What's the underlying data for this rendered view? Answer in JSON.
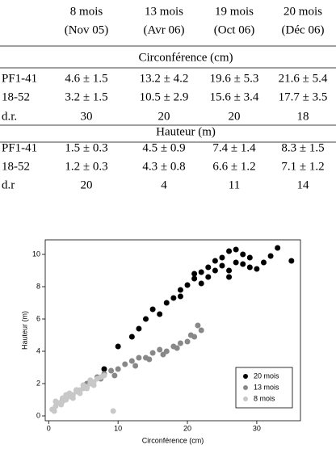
{
  "table": {
    "columns": [
      {
        "label": "8 mois",
        "sub": "(Nov 05)"
      },
      {
        "label": "13 mois",
        "sub": "(Avr 06)"
      },
      {
        "label": "19 mois",
        "sub": "(Oct 06)"
      },
      {
        "label": "20 mois",
        "sub": "(Déc 06)"
      }
    ],
    "sections": [
      {
        "title": "Circonférence (cm)",
        "rows": [
          [
            "PF1-41",
            "4.6 ± 1.5",
            "13.2 ± 4.2",
            "19.6 ± 5.3",
            "21.6 ± 5.4"
          ],
          [
            "18-52",
            "3.2 ± 1.5",
            "10.5 ± 2.9",
            "15.6 ± 3.4",
            "17.7 ± 3.5"
          ],
          [
            "d.r.",
            "30",
            "20",
            "20",
            "18"
          ]
        ]
      },
      {
        "title": "Hauteur (m)",
        "rows": [
          [
            "PF1-41",
            "1.5 ± 0.3",
            "4.5 ± 0.9",
            "7.4 ± 1.4",
            "8.3 ± 1.5"
          ],
          [
            "18-52",
            "1.2 ± 0.3",
            "4.3 ± 0.8",
            "6.6 ± 1.2",
            "7.1 ± 1.2"
          ],
          [
            "d.r",
            "20",
            "4",
            "11",
            "14"
          ]
        ]
      }
    ]
  },
  "chart_data": {
    "type": "scatter",
    "xlabel": "Circonférence (cm)",
    "ylabel": "Hauteur (m)",
    "xlim": [
      -0.5,
      36.3
    ],
    "ylim": [
      -0.3,
      10.9
    ],
    "xticks": [
      0,
      10,
      20,
      30
    ],
    "yticks": [
      0,
      2,
      4,
      6,
      8,
      10
    ],
    "legend": "lower right",
    "series": [
      {
        "name": "20 mois",
        "color": "#000000",
        "x": [
          8,
          10,
          12,
          13,
          14,
          15,
          16,
          17,
          18,
          19,
          20,
          21,
          22,
          22,
          23,
          24,
          24,
          25,
          25,
          26,
          26,
          27,
          28,
          28,
          29,
          30,
          31,
          32,
          33,
          35,
          21,
          23,
          26,
          27,
          29,
          19
        ],
        "values": [
          2.9,
          4.3,
          4.9,
          5.4,
          6.0,
          6.6,
          6.3,
          7.0,
          7.3,
          7.8,
          8.1,
          8.5,
          8.2,
          8.9,
          9.2,
          9.0,
          9.6,
          9.3,
          9.8,
          9.0,
          10.2,
          9.5,
          9.4,
          10.0,
          9.8,
          9.1,
          9.5,
          9.9,
          10.4,
          9.6,
          8.8,
          8.6,
          8.6,
          10.3,
          9.2,
          7.4
        ]
      },
      {
        "name": "13 mois",
        "color": "#888888",
        "x": [
          2,
          3,
          4,
          5,
          6,
          7,
          8,
          9,
          10,
          11,
          12,
          13,
          14,
          15,
          16,
          17,
          18,
          19,
          20,
          21,
          22,
          5.5,
          7.5,
          9.5,
          12.5,
          14.5,
          16.5,
          18.5,
          20.5,
          21.5
        ],
        "values": [
          1.0,
          1.3,
          1.6,
          1.9,
          2.2,
          2.4,
          2.6,
          2.8,
          2.9,
          3.2,
          3.4,
          3.6,
          3.6,
          3.9,
          4.1,
          4.0,
          4.3,
          4.5,
          4.6,
          4.9,
          5.3,
          2.0,
          2.3,
          2.5,
          3.1,
          3.5,
          3.8,
          4.2,
          5.0,
          5.6
        ]
      },
      {
        "name": "8 mois",
        "color": "#c8c8c8",
        "x": [
          0.5,
          1,
          1.5,
          2,
          2,
          2.5,
          3,
          3,
          3.5,
          4,
          4,
          4.5,
          5,
          5,
          5.5,
          6,
          6,
          6.5,
          7,
          7.5,
          8,
          1,
          2.5,
          3.5,
          4.5,
          5.5,
          6.5,
          0.8,
          1.8,
          9.3
        ],
        "values": [
          0.4,
          0.6,
          0.8,
          0.9,
          1.1,
          1.0,
          1.2,
          1.4,
          1.3,
          1.5,
          1.6,
          1.6,
          1.7,
          1.9,
          1.8,
          2.0,
          2.2,
          2.1,
          2.3,
          2.4,
          2.5,
          0.9,
          1.3,
          1.1,
          1.4,
          1.7,
          1.9,
          0.3,
          0.7,
          0.3
        ]
      }
    ]
  }
}
